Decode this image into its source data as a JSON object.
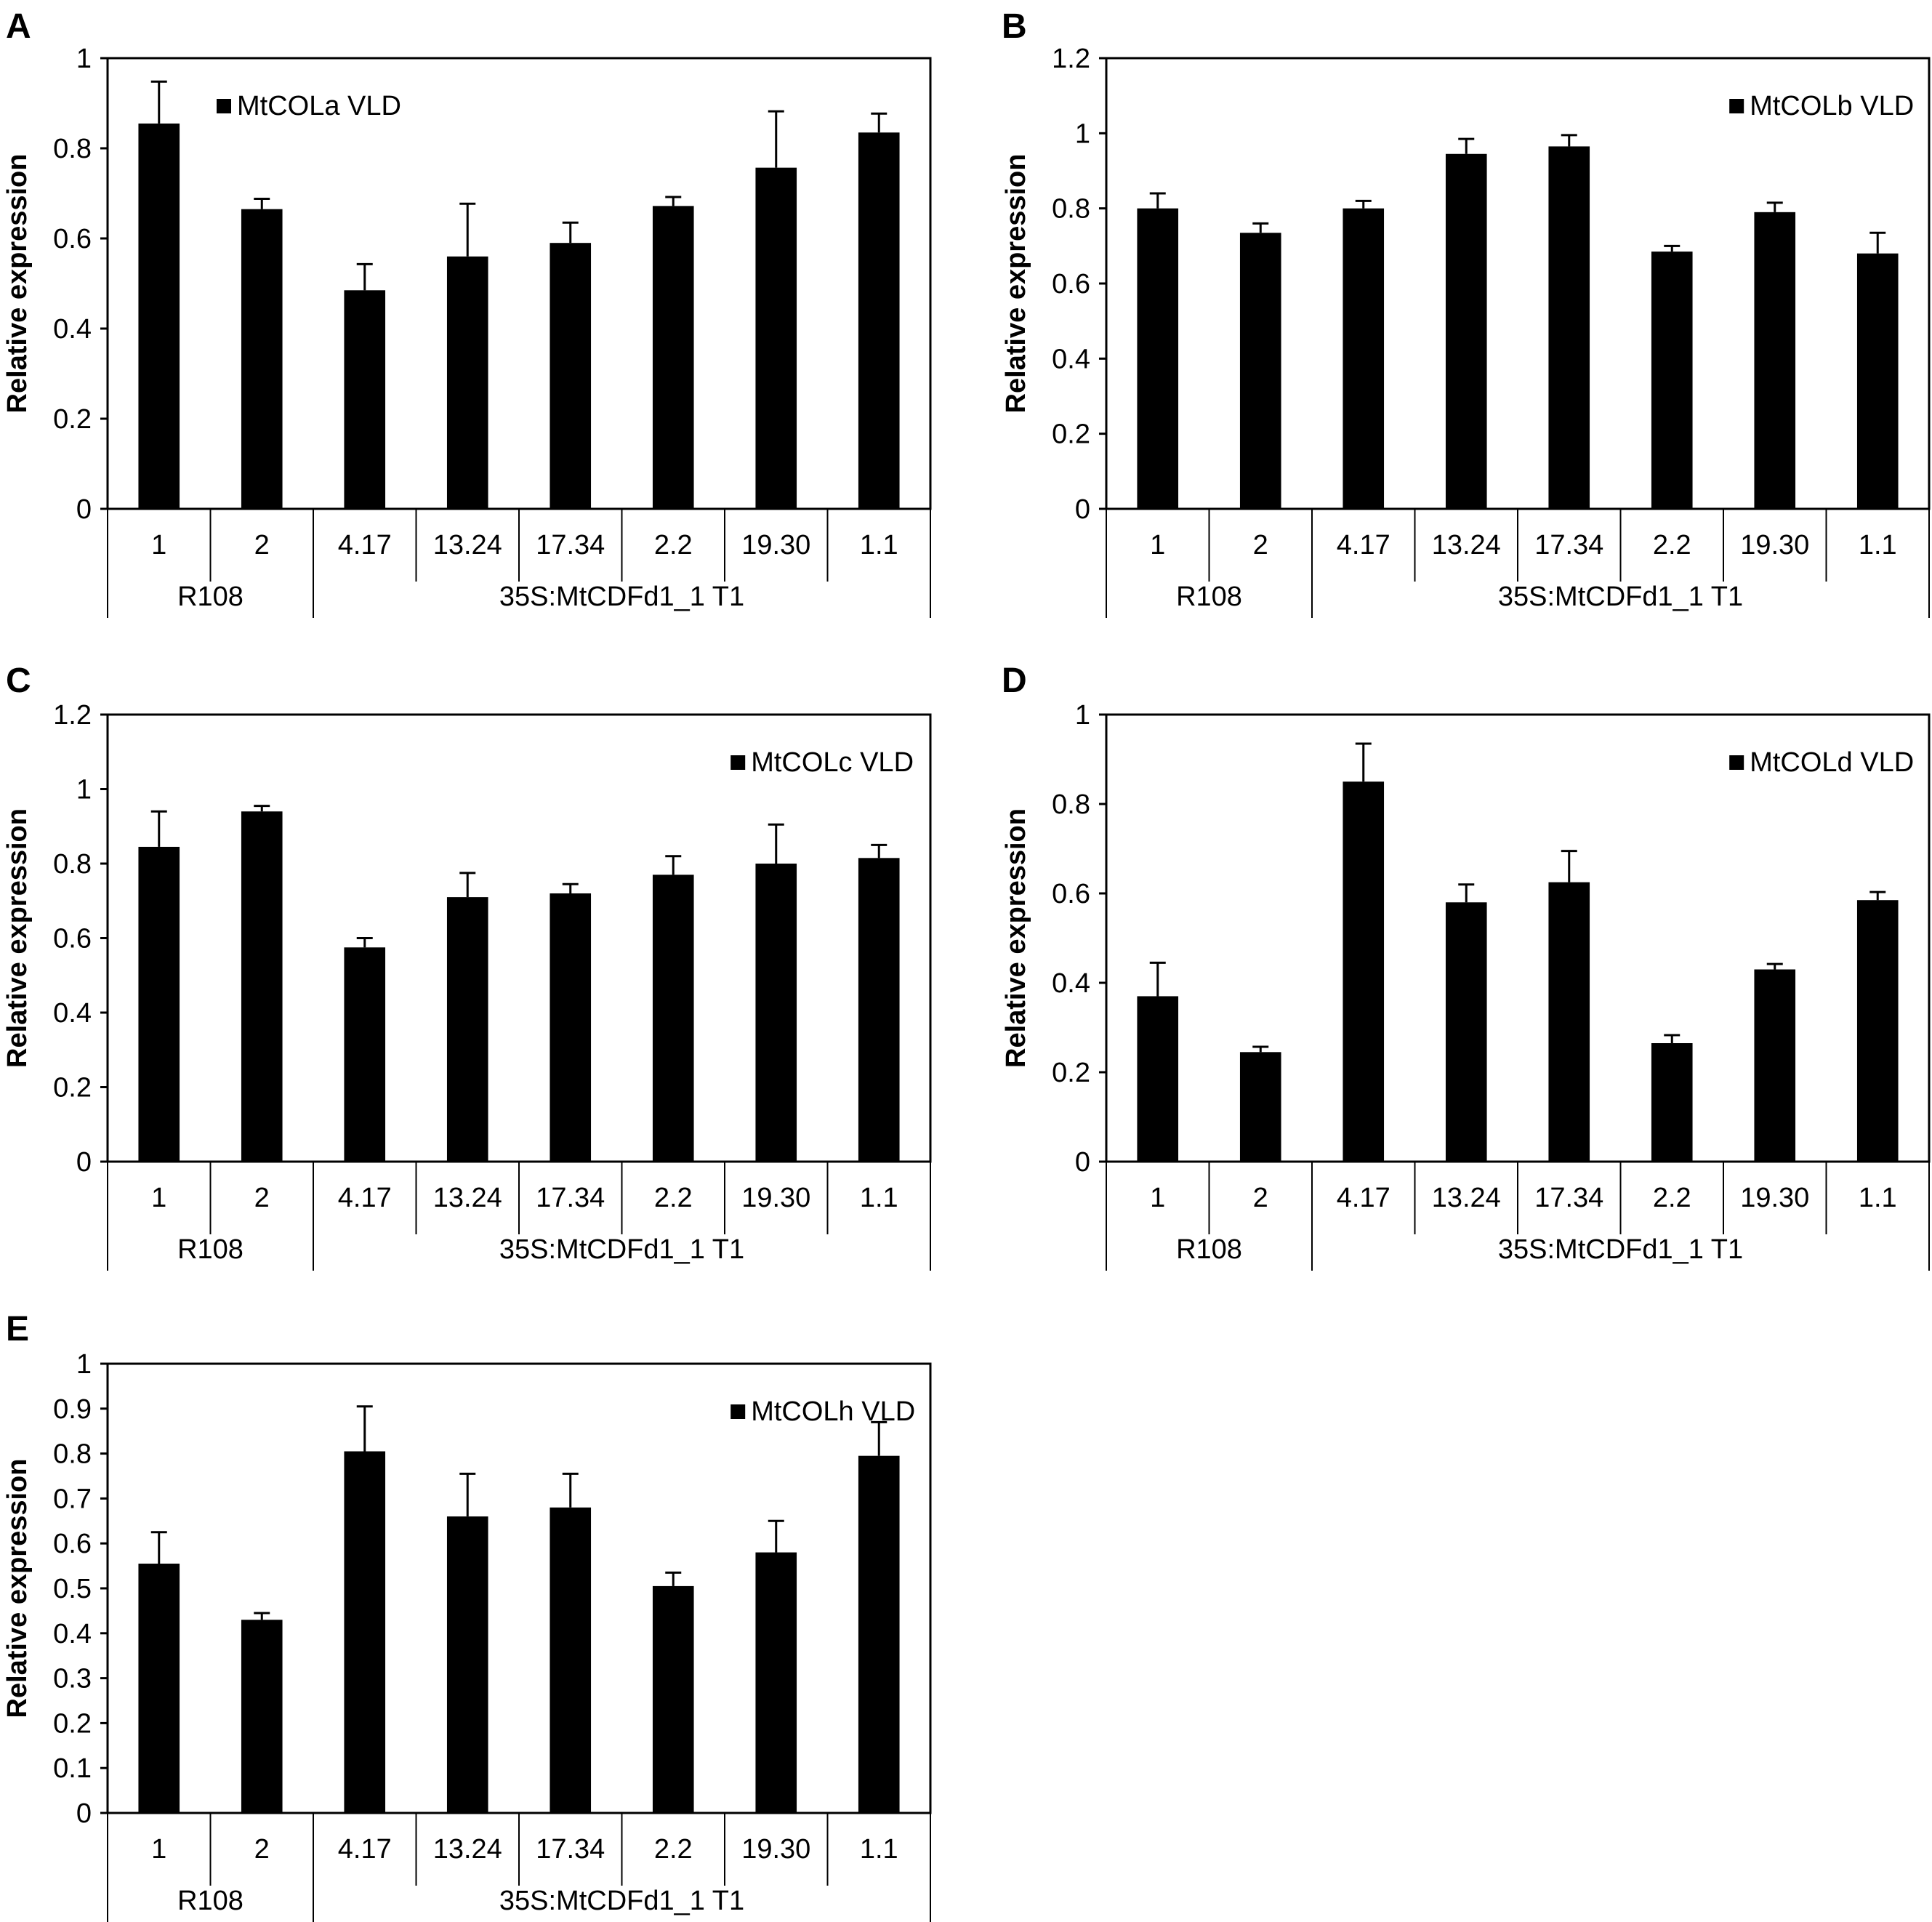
{
  "chart_data": [
    {
      "panel": "A",
      "type": "bar",
      "legend": "MtCOLa VLD",
      "legend_position": "top-left",
      "ylabel": "Relative expression",
      "ylim": [
        0,
        1
      ],
      "yticks": [
        "0",
        "0.2",
        "0.4",
        "0.6",
        "0.8",
        "1"
      ],
      "categories": [
        "1",
        "2",
        "4.17",
        "13.24",
        "17.34",
        "2.2",
        "19.30",
        "1.1"
      ],
      "values": [
        0.855,
        0.665,
        0.485,
        0.56,
        0.59,
        0.672,
        0.757,
        0.835
      ],
      "errors": [
        0.093,
        0.023,
        0.058,
        0.117,
        0.045,
        0.02,
        0.125,
        0.042
      ],
      "groups": [
        {
          "label": "R108",
          "count": 2
        },
        {
          "label": "35S:MtCDFd1_1 T1",
          "count": 6
        }
      ]
    },
    {
      "panel": "B",
      "type": "bar",
      "legend": "MtCOLb VLD",
      "legend_position": "top-right",
      "ylabel": "Relative expression",
      "ylim": [
        0,
        1.2
      ],
      "yticks": [
        "0",
        "0.2",
        "0.4",
        "0.6",
        "0.8",
        "1",
        "1.2"
      ],
      "categories": [
        "1",
        "2",
        "4.17",
        "13.24",
        "17.34",
        "2.2",
        "19.30",
        "1.1"
      ],
      "values": [
        0.8,
        0.735,
        0.8,
        0.945,
        0.965,
        0.685,
        0.79,
        0.68
      ],
      "errors": [
        0.04,
        0.025,
        0.02,
        0.04,
        0.03,
        0.015,
        0.025,
        0.055
      ],
      "groups": [
        {
          "label": "R108",
          "count": 2
        },
        {
          "label": "35S:MtCDFd1_1 T1",
          "count": 6
        }
      ]
    },
    {
      "panel": "C",
      "type": "bar",
      "legend": "MtCOLc VLD",
      "legend_position": "top-right",
      "ylabel": "Relative expression",
      "ylim": [
        0,
        1.2
      ],
      "yticks": [
        "0",
        "0.2",
        "0.4",
        "0.6",
        "0.8",
        "1",
        "1.2"
      ],
      "categories": [
        "1",
        "2",
        "4.17",
        "13.24",
        "17.34",
        "2.2",
        "19.30",
        "1.1"
      ],
      "values": [
        0.845,
        0.94,
        0.575,
        0.71,
        0.72,
        0.77,
        0.8,
        0.815
      ],
      "errors": [
        0.095,
        0.015,
        0.025,
        0.065,
        0.025,
        0.05,
        0.105,
        0.035
      ],
      "groups": [
        {
          "label": "R108",
          "count": 2
        },
        {
          "label": "35S:MtCDFd1_1 T1",
          "count": 6
        }
      ]
    },
    {
      "panel": "D",
      "type": "bar",
      "legend": "MtCOLd VLD",
      "legend_position": "top-right",
      "ylabel": "Relative expression",
      "ylim": [
        0,
        1
      ],
      "yticks": [
        "0",
        "0.2",
        "0.4",
        "0.6",
        "0.8",
        "1"
      ],
      "categories": [
        "1",
        "2",
        "4.17",
        "13.24",
        "17.34",
        "2.2",
        "19.30",
        "1.1"
      ],
      "values": [
        0.37,
        0.245,
        0.85,
        0.58,
        0.625,
        0.265,
        0.43,
        0.585
      ],
      "errors": [
        0.075,
        0.012,
        0.085,
        0.04,
        0.07,
        0.018,
        0.012,
        0.018
      ],
      "groups": [
        {
          "label": "R108",
          "count": 2
        },
        {
          "label": "35S:MtCDFd1_1 T1",
          "count": 6
        }
      ]
    },
    {
      "panel": "E",
      "type": "bar",
      "legend": "MtCOLh VLD",
      "legend_position": "top-right",
      "ylabel": "Relative expression",
      "ylim": [
        0,
        1
      ],
      "yticks": [
        "0",
        "0.1",
        "0.2",
        "0.3",
        "0.4",
        "0.5",
        "0.6",
        "0.7",
        "0.8",
        "0.9",
        "1"
      ],
      "categories": [
        "1",
        "2",
        "4.17",
        "13.24",
        "17.34",
        "2.2",
        "19.30",
        "1.1"
      ],
      "values": [
        0.555,
        0.43,
        0.805,
        0.66,
        0.68,
        0.505,
        0.58,
        0.795
      ],
      "errors": [
        0.07,
        0.015,
        0.1,
        0.095,
        0.075,
        0.03,
        0.07,
        0.075
      ],
      "groups": [
        {
          "label": "R108",
          "count": 2
        },
        {
          "label": "35S:MtCDFd1_1 T1",
          "count": 6
        }
      ]
    }
  ]
}
